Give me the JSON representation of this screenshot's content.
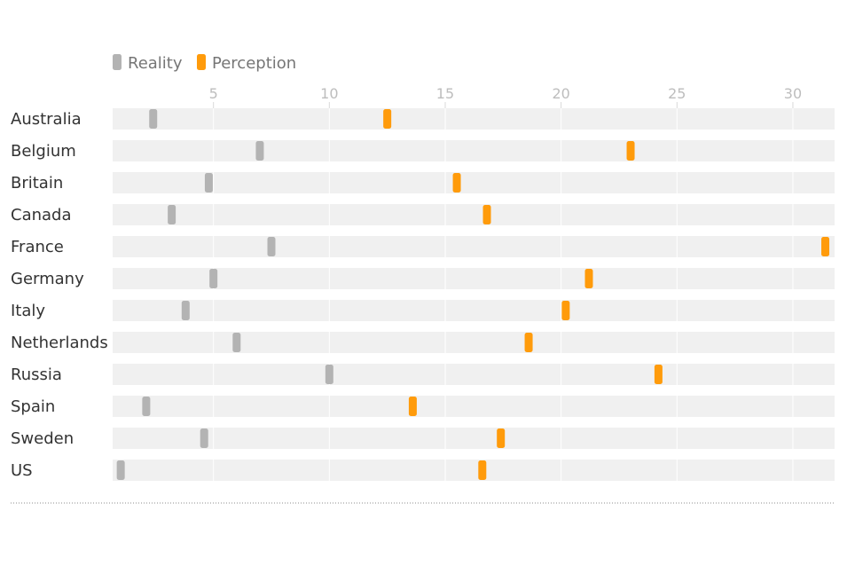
{
  "chart_data": {
    "type": "dot-range",
    "legend": [
      {
        "label": "Reality",
        "color": "#b3b3b3"
      },
      {
        "label": "Perception",
        "color": "#ff9b0b"
      }
    ],
    "x_ticks": [
      5,
      10,
      15,
      20,
      25,
      30
    ],
    "xlim": [
      0.65,
      31.8
    ],
    "grid": true,
    "legend_position": "top-left",
    "categories": [
      "Australia",
      "Belgium",
      "Britain",
      "Canada",
      "France",
      "Germany",
      "Italy",
      "Netherlands",
      "Russia",
      "Spain",
      "Sweden",
      "US"
    ],
    "series": [
      {
        "name": "Reality",
        "color": "#b3b3b3",
        "values": [
          2.4,
          7.0,
          4.8,
          3.2,
          7.5,
          5.0,
          3.8,
          6.0,
          10.0,
          2.1,
          4.6,
          1.0
        ]
      },
      {
        "name": "Perception",
        "color": "#ff9b0b",
        "values": [
          12.5,
          23.0,
          15.5,
          16.8,
          31.4,
          21.2,
          20.2,
          18.6,
          24.2,
          13.6,
          17.4,
          16.6
        ]
      }
    ]
  }
}
